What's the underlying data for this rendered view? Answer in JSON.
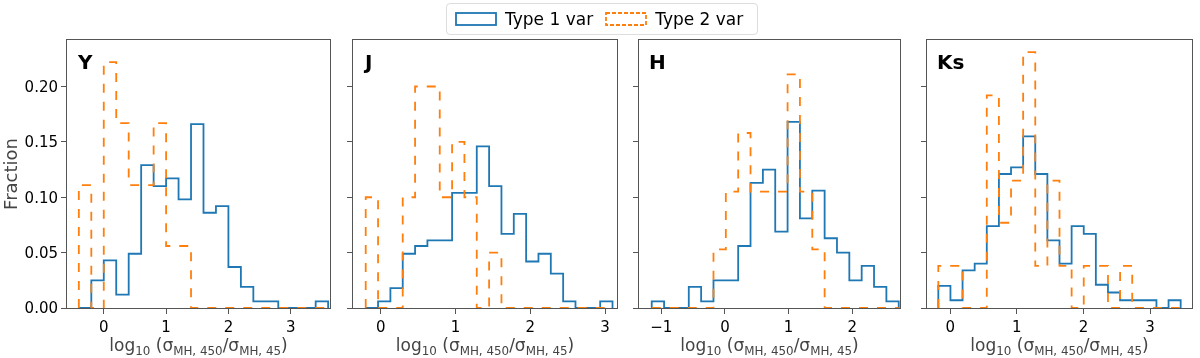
{
  "chart_data": [
    {
      "type": "histogram",
      "annotations": [
        "Y"
      ],
      "xlabel": "log$_{10}$ (σ$_{MH, 450}$/σ$_{MH, 45}$)",
      "ylabel": "Fraction",
      "legend": "top",
      "xlim": [
        -0.59,
        3.63
      ],
      "xticks": [
        0,
        1,
        2,
        3
      ],
      "ylim": [
        0,
        0.242
      ],
      "yticks": [
        {
          "value": 0,
          "label": "0.00"
        },
        {
          "value": 0.05,
          "label": "0.05"
        },
        {
          "value": 0.1,
          "label": "0.10"
        },
        {
          "value": 0.15,
          "label": "0.15"
        },
        {
          "value": 0.2,
          "label": "0.20"
        }
      ],
      "bins": [
        -0.4,
        -0.2,
        0,
        0.2,
        0.4,
        0.6,
        0.8,
        1.0,
        1.2,
        1.4,
        1.6,
        1.8,
        2.0,
        2.2,
        2.4,
        2.6,
        2.8,
        3.0,
        3.2,
        3.4,
        3.6
      ],
      "series": [
        {
          "name": "Type 1 var",
          "color": "#1f77b4",
          "line_style": "solid",
          "values": [
            0,
            0.025,
            0.043,
            0.012,
            0.049,
            0.129,
            0.11,
            0.117,
            0.098,
            0.166,
            0.086,
            0.092,
            0.037,
            0.019,
            0.006,
            0.006,
            0,
            0,
            0,
            0.006
          ]
        },
        {
          "name": "Type 2 var",
          "color": "#ff7f0e",
          "line_style": "dashed",
          "values": [
            0.111,
            0,
            0.222,
            0.167,
            0.111,
            0.111,
            0.167,
            0.056,
            0.056,
            0,
            0,
            0,
            0,
            0,
            0,
            0,
            0,
            0,
            0,
            0
          ]
        }
      ]
    },
    {
      "type": "histogram",
      "annotations": [
        "J"
      ],
      "xlabel": "log$_{10}$ (σ$_{MH, 450}$/σ$_{MH, 45}$)",
      "tick_labels": "x",
      "xlim": [
        -0.37,
        3.16
      ],
      "xticks": [
        0,
        1,
        2,
        3
      ],
      "ylim": [
        0,
        0.242
      ],
      "yticks": [
        {
          "value": 0,
          "label": null
        },
        {
          "value": 0.05,
          "label": null
        },
        {
          "value": 0.1,
          "label": null
        },
        {
          "value": 0.15,
          "label": null
        },
        {
          "value": 0.2,
          "label": null
        }
      ],
      "bins": [
        -0.2,
        -0.035,
        0.13,
        0.295,
        0.46,
        0.625,
        0.79,
        0.955,
        1.12,
        1.285,
        1.45,
        1.615,
        1.78,
        1.945,
        2.11,
        2.275,
        2.44,
        2.605,
        2.77,
        2.935,
        3.1
      ],
      "series": [
        {
          "color": "#1f77b4",
          "line_style": "solid",
          "values": [
            0,
            0.006,
            0.018,
            0.049,
            0.056,
            0.061,
            0.061,
            0.104,
            0.104,
            0.146,
            0.11,
            0.067,
            0.085,
            0.042,
            0.049,
            0.031,
            0.006,
            0,
            0,
            0.006
          ]
        },
        {
          "color": "#ff7f0e",
          "line_style": "dashed",
          "values": [
            0.1,
            0,
            0,
            0.1,
            0.2,
            0.2,
            0.1,
            0.15,
            0.1,
            0,
            0.05,
            0,
            0,
            0,
            0,
            0,
            0,
            0,
            0,
            0
          ]
        }
      ]
    },
    {
      "type": "histogram",
      "annotations": [
        "H"
      ],
      "xlabel": "log$_{10}$ (σ$_{MH, 450}$/σ$_{MH, 45}$)",
      "tick_labels": "x",
      "xlim": [
        -1.35,
        2.75
      ],
      "xticks": [
        {
          "value": -1,
          "label": "−1"
        },
        0,
        1,
        2
      ],
      "ylim": [
        0,
        0.242
      ],
      "yticks": [
        {
          "value": 0,
          "label": null
        },
        {
          "value": 0.05,
          "label": null
        },
        {
          "value": 0.1,
          "label": null
        },
        {
          "value": 0.15,
          "label": null
        },
        {
          "value": 0.2,
          "label": null
        }
      ],
      "bins": [
        -1.15,
        -0.956,
        -0.762,
        -0.568,
        -0.374,
        -0.18,
        0.014,
        0.208,
        0.402,
        0.596,
        0.79,
        0.984,
        1.178,
        1.372,
        1.566,
        1.76,
        1.954,
        2.148,
        2.342,
        2.536,
        2.73
      ],
      "series": [
        {
          "color": "#1f77b4",
          "line_style": "solid",
          "values": [
            0.006,
            0,
            0,
            0.019,
            0.006,
            0.025,
            0.025,
            0.056,
            0.113,
            0.125,
            0.069,
            0.168,
            0.081,
            0.106,
            0.063,
            0.05,
            0.025,
            0.038,
            0.019,
            0.006
          ]
        },
        {
          "color": "#ff7f0e",
          "line_style": "dashed",
          "values": [
            0,
            0,
            0,
            0,
            0,
            0.053,
            0.105,
            0.158,
            0.105,
            0.105,
            0.105,
            0.211,
            0.105,
            0.053,
            0,
            0,
            0,
            0,
            0,
            0
          ]
        }
      ]
    },
    {
      "type": "histogram",
      "annotations": [
        "Ks"
      ],
      "xlabel": "log$_{10}$ (σ$_{MH, 450}$/σ$_{MH, 45}$)",
      "tick_labels": "x",
      "xlim": [
        -0.35,
        3.63
      ],
      "xticks": [
        0,
        1,
        2,
        3
      ],
      "ylim": [
        0,
        0.242
      ],
      "yticks": [
        {
          "value": 0,
          "label": null
        },
        {
          "value": 0.05,
          "label": null
        },
        {
          "value": 0.1,
          "label": null
        },
        {
          "value": 0.15,
          "label": null
        },
        {
          "value": 0.2,
          "label": null
        }
      ],
      "bins": [
        -0.18,
        0.002,
        0.184,
        0.366,
        0.548,
        0.73,
        0.912,
        1.094,
        1.276,
        1.458,
        1.64,
        1.822,
        2.004,
        2.186,
        2.368,
        2.55,
        2.732,
        2.914,
        3.096,
        3.278,
        3.46
      ],
      "series": [
        {
          "color": "#1f77b4",
          "line_style": "solid",
          "values": [
            0.02,
            0.007,
            0.034,
            0.04,
            0.074,
            0.121,
            0.127,
            0.155,
            0.121,
            0.061,
            0.04,
            0.074,
            0.067,
            0.021,
            0.014,
            0.007,
            0.007,
            0.007,
            0,
            0.007
          ]
        },
        {
          "color": "#ff7f0e",
          "line_style": "dashed",
          "values": [
            0.038,
            0.038,
            0,
            0,
            0.192,
            0.077,
            0.115,
            0.231,
            0.038,
            0.115,
            0.038,
            0,
            0.038,
            0.038,
            0,
            0.038,
            0,
            0,
            0,
            0
          ]
        }
      ]
    }
  ]
}
